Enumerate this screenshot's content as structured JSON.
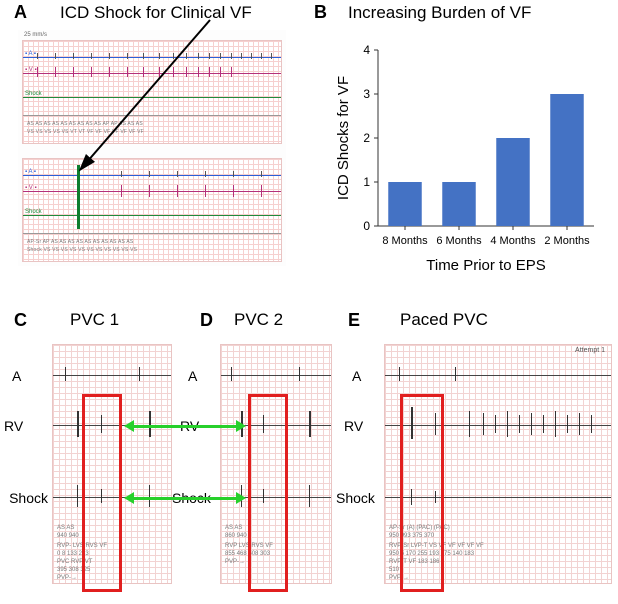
{
  "panelA": {
    "label": "A",
    "title": "ICD Shock for Clinical VF",
    "speed_text": "25 mm/s",
    "lead_labels": {
      "top_left": "▪ A ▪",
      "second_left": "▪ V ▪",
      "shock_left": "Shock"
    },
    "annotation_row1a": "AS  AS  AS  AS  AS  AS  AS  AS  AS  AP  AP  AS  AS  AS",
    "annotation_row1b": "VS  VS  VS  VS  VS  VT  VT  VF  VF  VF  VF  VF  VF  VF",
    "annotation_row2a": "AP-Sr  AP  AS  AS  AS  AS  AS  AS  AS  AS  AS  AS",
    "annotation_row2b": "Shock  VS  VS  VS  VS  VS  VS  VS  VS  VS  VS  VS"
  },
  "panelB": {
    "label": "B",
    "title": "Increasing Burden of VF",
    "chart": {
      "type": "bar",
      "categories": [
        "8 Months",
        "6 Months",
        "4 Months",
        "2 Months"
      ],
      "values": [
        1,
        1,
        2,
        3
      ],
      "ylim": [
        0,
        4
      ],
      "ytick_step": 1,
      "bar_color": "#4472c4",
      "bar_width_ratio": 0.62,
      "background_color": "#ffffff",
      "axis_color": "#333333",
      "tick_label_fontsize": 12,
      "axis_label_fontsize": 15,
      "ylabel": "ICD Shocks for VF",
      "xlabel": "Time Prior to EPS"
    }
  },
  "panelC": {
    "label": "C",
    "title": "PVC 1"
  },
  "panelD": {
    "label": "D",
    "title": "PVC 2"
  },
  "panelE": {
    "label": "E",
    "title": "Paced PVC",
    "attempt_text": "Attempt 1"
  },
  "lead_labels_CDE": {
    "A": "A",
    "RV": "RV",
    "Shock": "Shock"
  },
  "snippet_annot": {
    "C_bottom1": "AS       AS",
    "C_bottom2": "940      940",
    "C_bottom3": "RVP-  LVS  RVS VF",
    "C_bottom4": "0     8    133 223",
    "C_bottom5": "PVC   RVP  VT",
    "C_bottom6": "395   308  325",
    "C_bottom7": "PVP-→",
    "D_bottom1": "AS      AS",
    "D_bottom2": "860    940",
    "D_bottom3": "RVP  LVS  RVS VF",
    "D_bottom4": "855  468  508 303",
    "D_bottom5": "PVP-→",
    "E_bottom1": "AP-Sr   (A)          (PAC)  (PAC)",
    "E_bottom2": "950    993           375    370",
    "E_bottom3": "RVP-Sr LVP-T VS  VF  VF VF  VF VF",
    "E_bottom4": "950    5    170  255 193 175 140 183",
    "E_bottom5": "         RVP-T  VF 183 186",
    "E_bottom6": "         510",
    "E_bottom7": "     PVP-→"
  },
  "colors": {
    "red_box": "#e11f1f",
    "green_arrow": "#27d02b",
    "trace_blue": "#2b5fd8",
    "trace_magenta": "#b4307a",
    "trace_green": "#1f8a3b",
    "grid": "#f2d3d2"
  }
}
